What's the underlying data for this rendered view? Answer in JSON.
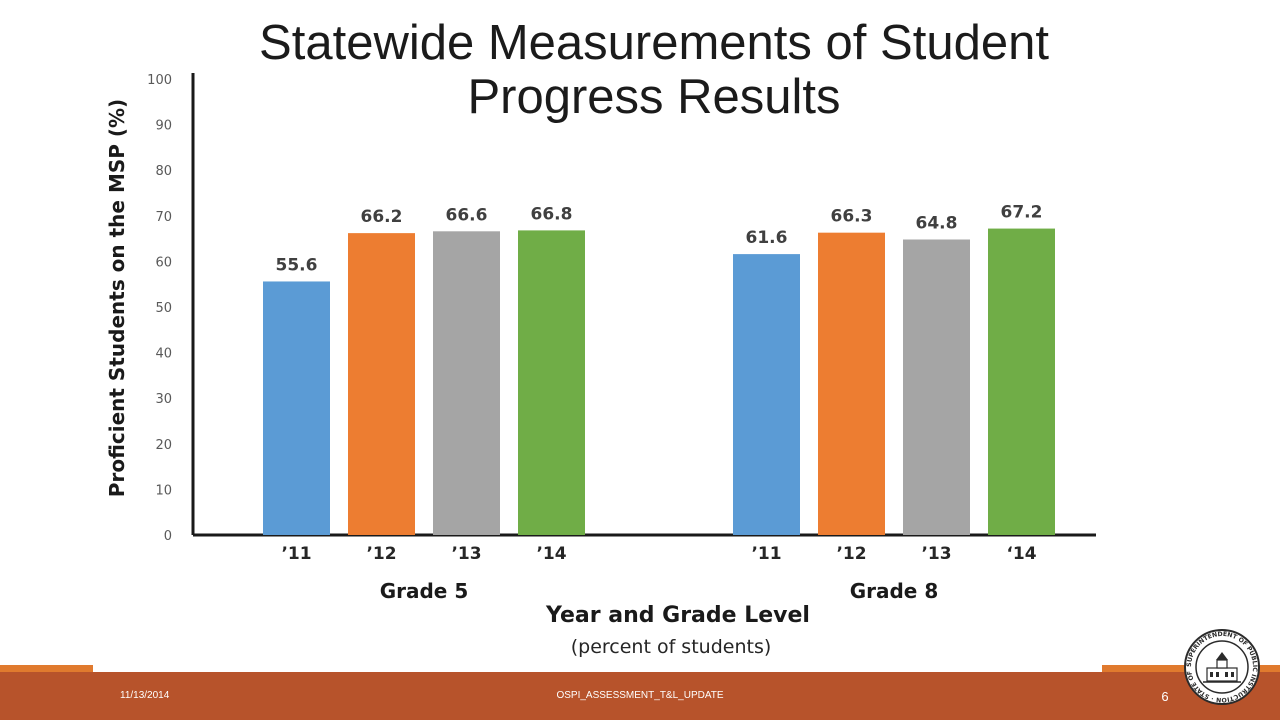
{
  "slide": {
    "title": "Statewide Measurements of Student Progress Results",
    "footer_date": "11/13/2014",
    "footer_name": "OSPI_ASSESSMENT_T&L_UPDATE",
    "page_number": "6",
    "seal_text": "SUPERINTENDENT OF PUBLIC INSTRUCTION · STATE OF WASHINGTON"
  },
  "chart_data": {
    "type": "bar",
    "title": "",
    "ylabel": "Proficient Students on the MSP (%)",
    "xlabel": "Year and Grade Level",
    "xlabel_sub": "(percent of students)",
    "ylim": [
      0,
      100
    ],
    "yticks": [
      "0",
      "10",
      "20",
      "30",
      "40",
      "50",
      "60",
      "70",
      "80",
      "90",
      "100"
    ],
    "grid": false,
    "groups": [
      {
        "name": "Grade 5",
        "categories": [
          "’11",
          "’12",
          "’13",
          "’14"
        ],
        "values": [
          55.6,
          66.2,
          66.6,
          66.8
        ],
        "labels": [
          "55.6",
          "66.2",
          "66.6",
          "66.8"
        ]
      },
      {
        "name": "Grade 8",
        "categories": [
          "’11",
          "’12",
          "’13",
          "‘14"
        ],
        "values": [
          61.6,
          66.3,
          64.8,
          67.2
        ],
        "labels": [
          "61.6",
          "66.3",
          "64.8",
          "67.2"
        ]
      }
    ],
    "bar_colors": [
      "#5b9bd5",
      "#ed7d31",
      "#a5a5a5",
      "#70ad47"
    ]
  }
}
